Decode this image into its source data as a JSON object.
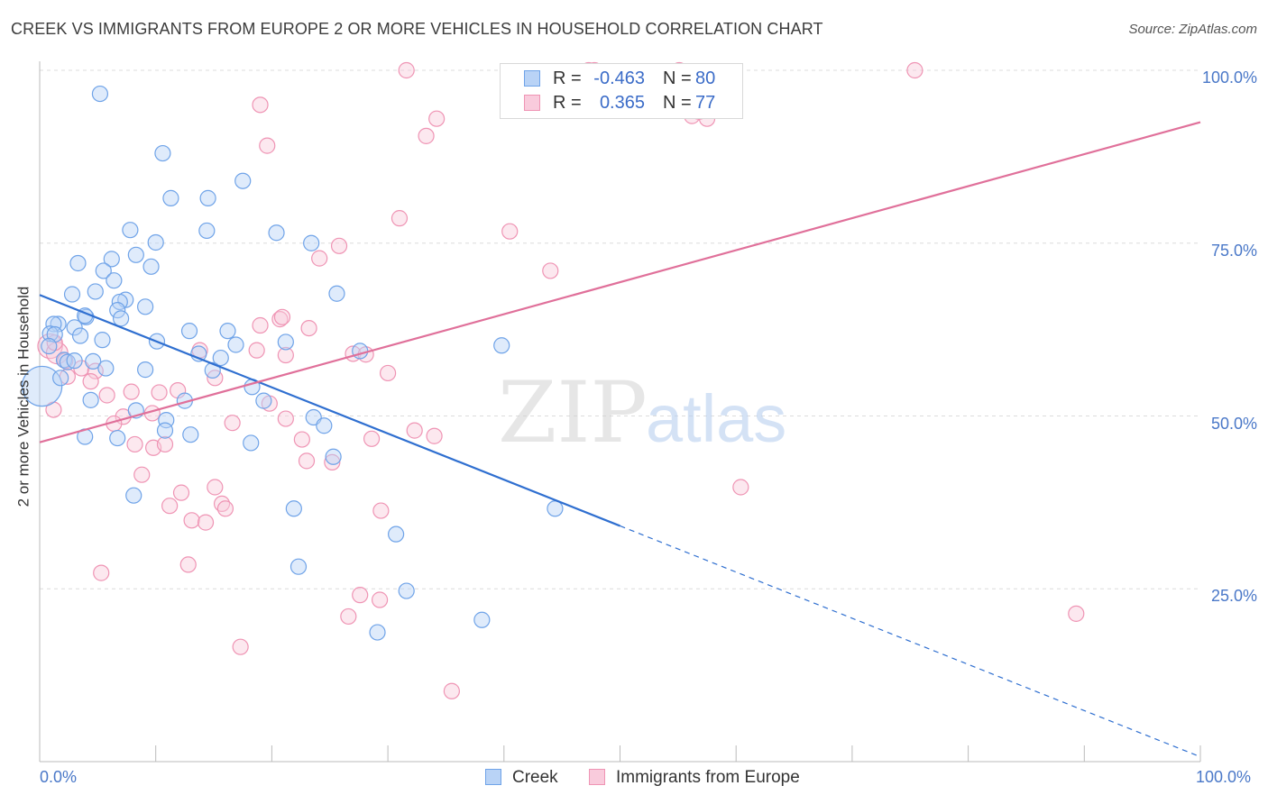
{
  "title": "CREEK VS IMMIGRANTS FROM EUROPE 2 OR MORE VEHICLES IN HOUSEHOLD CORRELATION CHART",
  "source": "Source: ZipAtlas.com",
  "watermark": {
    "zip": "ZIP",
    "atlas": "atlas"
  },
  "colors": {
    "creek": "#6fa3e8",
    "creek_fill": "#b9d3f6",
    "creek_line": "#2f6fd0",
    "europe": "#ef94b4",
    "europe_fill": "#f9cbdc",
    "europe_line": "#e0709a",
    "axis_text": "#4a78c8",
    "grid": "#dcdcdc"
  },
  "stats": [
    {
      "r_label": "R =",
      "r": "-0.463",
      "n_label": "N =",
      "n": "80",
      "series": "creek"
    },
    {
      "r_label": "R =",
      "r": "0.365",
      "n_label": "N =",
      "n": "77",
      "series": "europe"
    }
  ],
  "legend": [
    {
      "label": "Creek",
      "series": "creek"
    },
    {
      "label": "Immigrants from Europe",
      "series": "europe"
    }
  ],
  "chart_data": {
    "type": "scatter",
    "title": "CREEK VS IMMIGRANTS FROM EUROPE 2 OR MORE VEHICLES IN HOUSEHOLD CORRELATION CHART",
    "xlabel": "",
    "ylabel": "2 or more Vehicles in Household",
    "xlim": [
      0,
      100
    ],
    "ylim": [
      0,
      100
    ],
    "x_tick_labels": [
      "0.0%",
      "100.0%"
    ],
    "y_ticks": [
      25,
      50,
      75,
      100
    ],
    "y_tick_labels": [
      "25.0%",
      "50.0%",
      "75.0%",
      "100.0%"
    ],
    "grid": true,
    "series": [
      {
        "name": "Creek",
        "trend": {
          "x0": 0,
          "y0": 67.5,
          "x_solid_end": 50,
          "x1": 100,
          "y1": 0.7
        },
        "points": [
          [
            0.2,
            54.3,
            2.6
          ],
          [
            5.2,
            96.6,
            1
          ],
          [
            10.6,
            88.0,
            1
          ],
          [
            11.3,
            81.5,
            1
          ],
          [
            14.5,
            81.5,
            1
          ],
          [
            17.5,
            84.0,
            1
          ],
          [
            14.4,
            76.8,
            1
          ],
          [
            20.4,
            76.5,
            1
          ],
          [
            7.8,
            76.9,
            1
          ],
          [
            10.0,
            75.1,
            1
          ],
          [
            23.4,
            75.0,
            1
          ],
          [
            8.3,
            73.3,
            1
          ],
          [
            6.2,
            72.7,
            1
          ],
          [
            9.6,
            71.6,
            1
          ],
          [
            3.3,
            72.1,
            1
          ],
          [
            5.5,
            71.0,
            1
          ],
          [
            6.4,
            69.6,
            1
          ],
          [
            4.8,
            68.0,
            1
          ],
          [
            2.8,
            67.6,
            1
          ],
          [
            25.6,
            67.7,
            1
          ],
          [
            7.4,
            66.8,
            1
          ],
          [
            6.9,
            66.5,
            1
          ],
          [
            9.1,
            65.8,
            1
          ],
          [
            6.7,
            65.3,
            1
          ],
          [
            7.0,
            64.1,
            1
          ],
          [
            4.0,
            64.3,
            1
          ],
          [
            3.9,
            64.5,
            1
          ],
          [
            1.6,
            63.3,
            1
          ],
          [
            1.2,
            63.3,
            1
          ],
          [
            3.0,
            62.8,
            1
          ],
          [
            0.9,
            61.9,
            1
          ],
          [
            1.3,
            61.8,
            1
          ],
          [
            12.9,
            62.3,
            1
          ],
          [
            16.2,
            62.3,
            1
          ],
          [
            3.5,
            61.6,
            1
          ],
          [
            5.4,
            61.0,
            1
          ],
          [
            10.1,
            60.8,
            1
          ],
          [
            16.9,
            60.3,
            1
          ],
          [
            21.2,
            60.7,
            1
          ],
          [
            0.8,
            60.1,
            1
          ],
          [
            2.1,
            58.1,
            1
          ],
          [
            2.4,
            57.8,
            1
          ],
          [
            3.0,
            58.0,
            1
          ],
          [
            4.6,
            57.9,
            1
          ],
          [
            13.7,
            59.0,
            1
          ],
          [
            15.6,
            58.4,
            1
          ],
          [
            27.6,
            59.4,
            1
          ],
          [
            39.8,
            60.2,
            1
          ],
          [
            5.7,
            56.9,
            1
          ],
          [
            9.1,
            56.7,
            1
          ],
          [
            14.9,
            56.6,
            1
          ],
          [
            1.8,
            55.5,
            1
          ],
          [
            18.3,
            54.2,
            1
          ],
          [
            4.4,
            52.3,
            1
          ],
          [
            12.5,
            52.2,
            1
          ],
          [
            19.3,
            52.2,
            1
          ],
          [
            8.3,
            50.8,
            1
          ],
          [
            23.6,
            49.8,
            1
          ],
          [
            10.9,
            49.4,
            1
          ],
          [
            24.5,
            48.6,
            1
          ],
          [
            3.9,
            47.0,
            1
          ],
          [
            6.7,
            46.8,
            1
          ],
          [
            10.8,
            47.9,
            1
          ],
          [
            13.0,
            47.3,
            1
          ],
          [
            18.2,
            46.1,
            1
          ],
          [
            25.3,
            44.1,
            1
          ],
          [
            8.1,
            38.5,
            1
          ],
          [
            21.9,
            36.6,
            1
          ],
          [
            44.4,
            36.6,
            1
          ],
          [
            30.7,
            32.9,
            1
          ],
          [
            22.3,
            28.2,
            1
          ],
          [
            31.6,
            24.7,
            1
          ],
          [
            38.1,
            20.5,
            1
          ],
          [
            29.1,
            18.7,
            1
          ]
        ]
      },
      {
        "name": "Immigrants from Europe",
        "trend": {
          "x0": 0,
          "y0": 46.2,
          "x1": 100,
          "y1": 92.5
        },
        "points": [
          [
            31.6,
            100,
            1
          ],
          [
            47.3,
            100,
            1
          ],
          [
            47.8,
            100,
            1
          ],
          [
            55.1,
            100,
            1
          ],
          [
            75.4,
            100,
            1
          ],
          [
            56.8,
            94.0,
            1
          ],
          [
            56.2,
            93.4,
            1
          ],
          [
            57.5,
            93.0,
            1
          ],
          [
            19.0,
            95.0,
            1
          ],
          [
            34.2,
            93.0,
            1
          ],
          [
            33.3,
            90.5,
            1
          ],
          [
            19.6,
            89.1,
            1
          ],
          [
            31.0,
            78.6,
            1
          ],
          [
            40.5,
            76.7,
            1
          ],
          [
            25.8,
            74.6,
            1
          ],
          [
            24.1,
            72.8,
            1
          ],
          [
            44.0,
            71.0,
            1
          ],
          [
            20.7,
            64.0,
            1
          ],
          [
            20.9,
            64.3,
            1
          ],
          [
            23.2,
            62.7,
            1
          ],
          [
            19.0,
            63.1,
            1
          ],
          [
            0.9,
            60.1,
            1.6
          ],
          [
            1.5,
            59.1,
            1.4
          ],
          [
            1.3,
            60.6,
            1
          ],
          [
            18.7,
            59.5,
            1
          ],
          [
            27.0,
            59.0,
            1
          ],
          [
            28.1,
            58.9,
            1
          ],
          [
            21.2,
            58.8,
            1
          ],
          [
            13.8,
            59.5,
            1
          ],
          [
            2.2,
            58.0,
            1
          ],
          [
            3.6,
            56.9,
            1
          ],
          [
            4.8,
            56.5,
            1
          ],
          [
            2.4,
            55.7,
            1
          ],
          [
            15.1,
            55.5,
            1
          ],
          [
            30.0,
            56.2,
            1
          ],
          [
            4.4,
            55.0,
            1
          ],
          [
            11.9,
            53.7,
            1
          ],
          [
            7.9,
            53.5,
            1
          ],
          [
            10.3,
            53.4,
            1
          ],
          [
            5.8,
            53.0,
            1
          ],
          [
            19.8,
            51.8,
            1
          ],
          [
            1.2,
            50.9,
            1
          ],
          [
            7.2,
            49.9,
            1
          ],
          [
            9.7,
            50.4,
            1
          ],
          [
            16.6,
            49.0,
            1
          ],
          [
            21.2,
            49.6,
            1
          ],
          [
            6.4,
            48.9,
            1
          ],
          [
            32.3,
            47.9,
            1
          ],
          [
            34.0,
            47.1,
            1
          ],
          [
            28.6,
            46.7,
            1
          ],
          [
            22.6,
            46.6,
            1
          ],
          [
            8.2,
            45.9,
            1
          ],
          [
            9.8,
            45.4,
            1
          ],
          [
            10.8,
            45.9,
            1
          ],
          [
            23.0,
            43.5,
            1
          ],
          [
            25.2,
            43.3,
            1
          ],
          [
            8.8,
            41.5,
            1
          ],
          [
            15.1,
            39.7,
            1
          ],
          [
            12.2,
            38.9,
            1
          ],
          [
            60.4,
            39.7,
            1
          ],
          [
            11.2,
            37.0,
            1
          ],
          [
            15.7,
            37.3,
            1
          ],
          [
            16.0,
            36.6,
            1
          ],
          [
            29.4,
            36.3,
            1
          ],
          [
            13.1,
            34.9,
            1
          ],
          [
            14.3,
            34.6,
            1
          ],
          [
            12.8,
            28.5,
            1
          ],
          [
            5.3,
            27.3,
            1
          ],
          [
            27.6,
            24.1,
            1
          ],
          [
            29.3,
            23.4,
            1
          ],
          [
            89.3,
            21.4,
            1
          ],
          [
            26.6,
            21.0,
            1
          ],
          [
            17.3,
            16.6,
            1
          ],
          [
            35.5,
            10.2,
            1
          ]
        ]
      }
    ]
  },
  "axis": {
    "ylabel": "2 or more Vehicles in Household"
  }
}
